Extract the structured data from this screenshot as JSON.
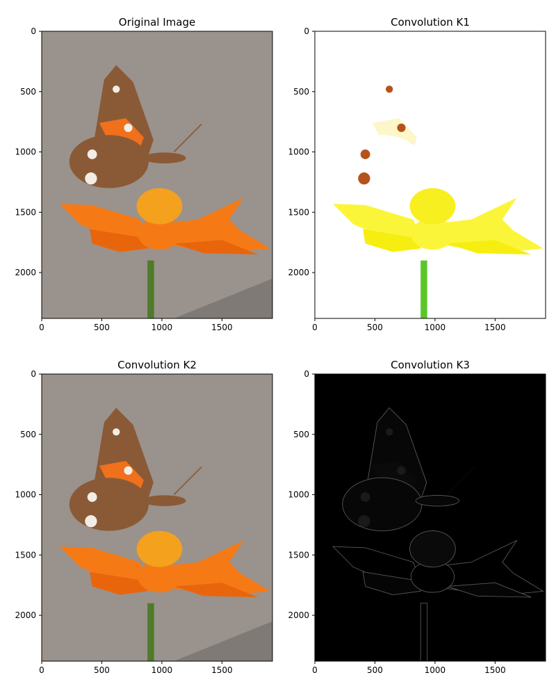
{
  "chart_data": [
    {
      "type": "image",
      "title": "Original Image",
      "xlim": [
        0,
        1920
      ],
      "ylim": [
        2380,
        0
      ],
      "xticks": [
        0,
        500,
        1000,
        1500
      ],
      "yticks": [
        0,
        500,
        1000,
        1500,
        2000
      ]
    },
    {
      "type": "image",
      "title": "Convolution K1",
      "xlim": [
        0,
        1920
      ],
      "ylim": [
        2380,
        0
      ],
      "xticks": [
        0,
        500,
        1000,
        1500
      ],
      "yticks": [
        0,
        500,
        1000,
        1500,
        2000
      ]
    },
    {
      "type": "image",
      "title": "Convolution K2",
      "xlim": [
        0,
        1920
      ],
      "ylim": [
        2380,
        0
      ],
      "xticks": [
        0,
        500,
        1000,
        1500
      ],
      "yticks": [
        0,
        500,
        1000,
        1500,
        2000
      ]
    },
    {
      "type": "image",
      "title": "Convolution K3",
      "xlim": [
        0,
        1920
      ],
      "ylim": [
        2380,
        0
      ],
      "xticks": [
        0,
        500,
        1000,
        1500
      ],
      "yticks": [
        0,
        500,
        1000,
        1500,
        2000
      ]
    }
  ]
}
